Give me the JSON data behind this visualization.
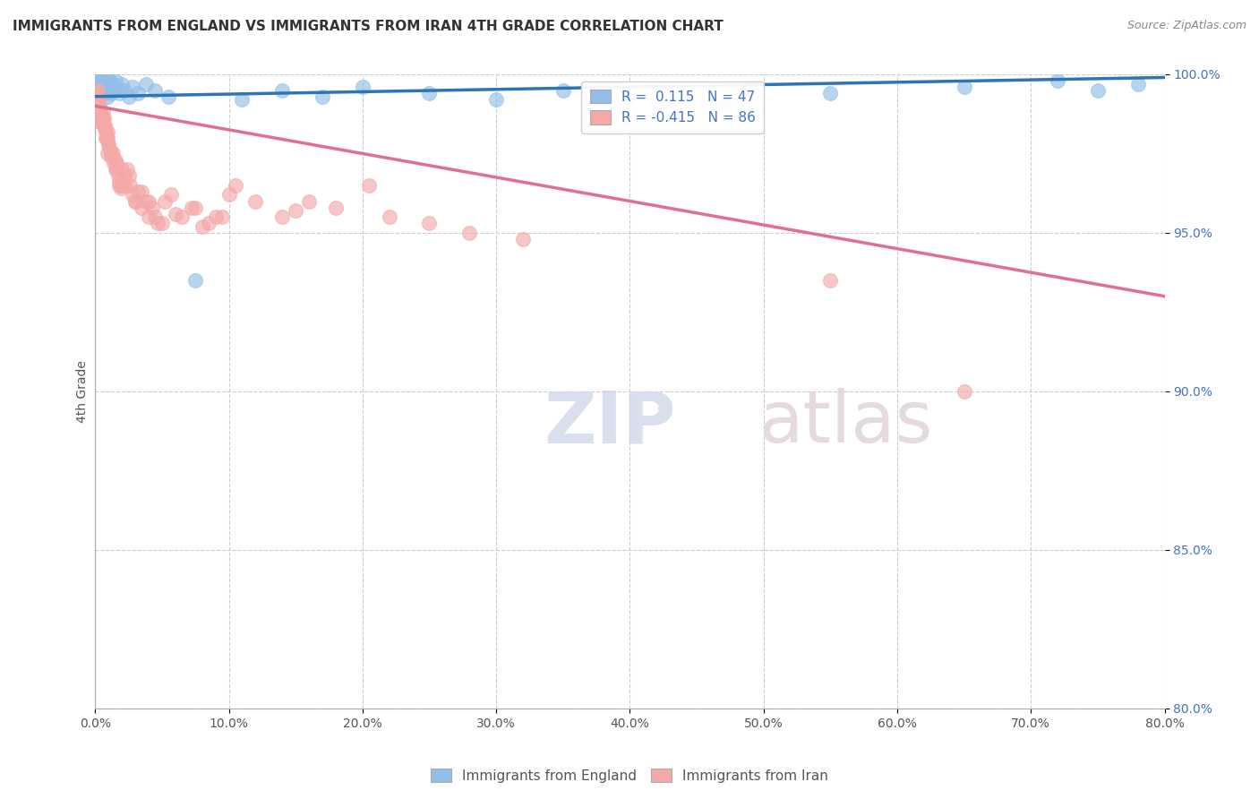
{
  "title": "IMMIGRANTS FROM ENGLAND VS IMMIGRANTS FROM IRAN 4TH GRADE CORRELATION CHART",
  "source": "Source: ZipAtlas.com",
  "ylabel": "4th Grade",
  "xlim": [
    0.0,
    80.0
  ],
  "ylim": [
    80.0,
    100.0
  ],
  "xticks": [
    0.0,
    10.0,
    20.0,
    30.0,
    40.0,
    50.0,
    60.0,
    70.0,
    80.0
  ],
  "yticks": [
    80.0,
    85.0,
    90.0,
    95.0,
    100.0
  ],
  "england_color": "#92bfe8",
  "iran_color": "#f4a8a8",
  "england_R": 0.115,
  "england_N": 47,
  "iran_R": -0.415,
  "iran_N": 86,
  "england_line_color": "#2e75b6",
  "iran_line_color": "#e07090",
  "legend_label_england": "Immigrants from England",
  "legend_label_iran": "Immigrants from Iran",
  "watermark_zip": "ZIP",
  "watermark_atlas": "atlas",
  "background_color": "#ffffff",
  "grid_color": "#cccccc",
  "england_x": [
    0.15,
    0.25,
    0.35,
    0.45,
    0.5,
    0.55,
    0.6,
    0.65,
    0.7,
    0.75,
    0.8,
    0.85,
    0.9,
    0.95,
    1.0,
    1.05,
    1.1,
    1.15,
    1.2,
    1.3,
    1.4,
    1.5,
    1.6,
    1.8,
    2.0,
    2.2,
    2.5,
    2.8,
    3.2,
    3.8,
    4.5,
    5.5,
    7.5,
    11.0,
    14.0,
    17.0,
    20.0,
    25.0,
    30.0,
    35.0,
    40.0,
    47.0,
    55.0,
    65.0,
    72.0,
    75.0,
    78.0
  ],
  "england_y": [
    99.6,
    99.8,
    99.9,
    99.7,
    99.5,
    99.8,
    99.6,
    99.9,
    99.4,
    99.7,
    99.5,
    99.8,
    99.6,
    99.3,
    99.7,
    99.5,
    99.8,
    99.6,
    99.4,
    99.7,
    99.5,
    99.8,
    99.6,
    99.4,
    99.7,
    99.5,
    99.3,
    99.6,
    99.4,
    99.7,
    99.5,
    99.3,
    93.5,
    99.2,
    99.5,
    99.3,
    99.6,
    99.4,
    99.2,
    99.5,
    99.3,
    99.1,
    99.4,
    99.6,
    99.8,
    99.5,
    99.7
  ],
  "iran_x": [
    0.1,
    0.15,
    0.2,
    0.25,
    0.3,
    0.35,
    0.4,
    0.45,
    0.5,
    0.55,
    0.6,
    0.65,
    0.7,
    0.75,
    0.8,
    0.85,
    0.9,
    0.95,
    1.0,
    1.1,
    1.2,
    1.3,
    1.4,
    1.5,
    1.6,
    1.7,
    1.8,
    1.9,
    2.0,
    2.2,
    2.4,
    2.6,
    2.8,
    3.0,
    3.2,
    3.5,
    3.8,
    4.0,
    4.3,
    4.7,
    5.2,
    5.7,
    6.5,
    7.2,
    8.0,
    9.0,
    10.5,
    12.0,
    14.0,
    16.0,
    18.0,
    20.5,
    22.0,
    25.0,
    28.0,
    32.0,
    1.2,
    0.8,
    0.5,
    0.3,
    1.5,
    2.5,
    3.5,
    0.6,
    1.0,
    2.0,
    4.0,
    6.0,
    8.5,
    7.5,
    0.4,
    1.8,
    3.0,
    5.0,
    10.0,
    15.0,
    0.7,
    2.2,
    4.5,
    9.5,
    0.9,
    1.6,
    55.0,
    65.0,
    0.2,
    0.35
  ],
  "iran_y": [
    99.5,
    99.3,
    99.5,
    99.2,
    99.0,
    98.8,
    98.9,
    98.7,
    98.6,
    98.5,
    98.8,
    98.6,
    98.4,
    98.3,
    98.2,
    98.0,
    98.2,
    98.0,
    97.8,
    97.6,
    97.4,
    97.5,
    97.2,
    97.0,
    97.2,
    96.8,
    96.6,
    96.4,
    96.5,
    96.5,
    97.0,
    96.5,
    96.2,
    96.0,
    96.3,
    95.8,
    96.0,
    95.5,
    95.8,
    95.3,
    96.0,
    96.2,
    95.5,
    95.8,
    95.2,
    95.5,
    96.5,
    96.0,
    95.5,
    96.0,
    95.8,
    96.5,
    95.5,
    95.3,
    95.0,
    94.8,
    97.5,
    98.0,
    98.5,
    98.8,
    97.3,
    96.8,
    96.3,
    98.6,
    97.8,
    97.0,
    96.0,
    95.6,
    95.3,
    95.8,
    98.7,
    96.5,
    96.0,
    95.3,
    96.2,
    95.7,
    98.3,
    96.8,
    95.5,
    95.5,
    97.5,
    97.0,
    93.5,
    90.0,
    99.0,
    98.5
  ]
}
